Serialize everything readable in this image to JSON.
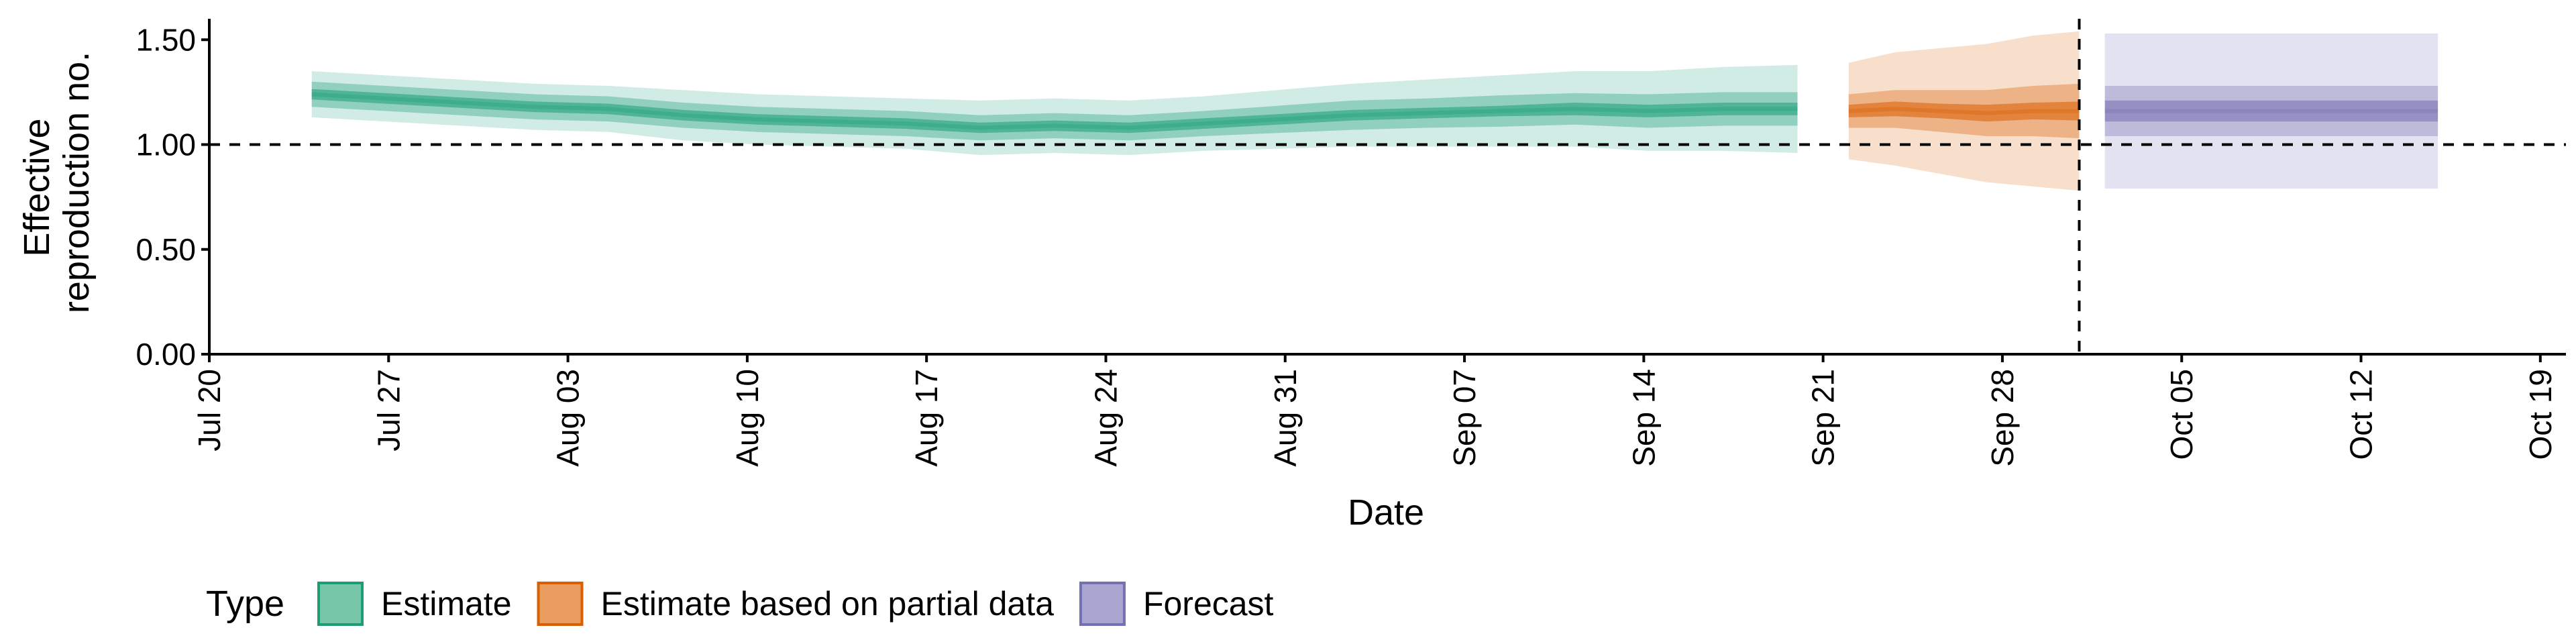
{
  "chart_data": {
    "type": "area",
    "xlabel": "Date",
    "ylabel_lines": [
      "Effective",
      "reproduction no."
    ],
    "x_ticks": [
      "2020-07-20",
      "2020-07-27",
      "2020-08-03",
      "2020-08-10",
      "2020-08-17",
      "2020-08-24",
      "2020-08-31",
      "2020-09-07",
      "2020-09-14",
      "2020-09-21",
      "2020-09-28",
      "2020-10-05",
      "2020-10-12",
      "2020-10-19"
    ],
    "x_tick_labels": [
      "Jul 20",
      "Jul 27",
      "Aug 03",
      "Aug 10",
      "Aug 17",
      "Aug 24",
      "Aug 31",
      "Sep 07",
      "Sep 14",
      "Sep 21",
      "Sep 28",
      "Oct 05",
      "Oct 12",
      "Oct 19"
    ],
    "xlim": [
      "2020-07-20",
      "2020-10-20"
    ],
    "y_ticks": [
      0,
      0.5,
      1.0,
      1.5
    ],
    "y_tick_labels": [
      "0.00",
      "0.50",
      "1.00",
      "1.50"
    ],
    "ylim": [
      0,
      1.6
    ],
    "reference_line_y": 1.0,
    "reference_line_x": "2020-10-01",
    "grid": false,
    "legend": {
      "title": "Type",
      "position": "bottom",
      "entries": [
        {
          "label": "Estimate",
          "fill": "#78c6a9",
          "stroke": "#1b9e77"
        },
        {
          "label": "Estimate based on partial data",
          "fill": "#e99d60",
          "stroke": "#d95f02"
        },
        {
          "label": "Forecast",
          "fill": "#a9a6d2",
          "stroke": "#7570b3"
        }
      ]
    },
    "series": [
      {
        "name": "Estimate",
        "color": "#1b9e77",
        "band_opacities": [
          0.2,
          0.35,
          0.55
        ],
        "x_start": "2020-07-24",
        "x_end": "2020-09-20",
        "median": [
          1.24,
          1.22,
          1.2,
          1.18,
          1.17,
          1.14,
          1.12,
          1.11,
          1.1,
          1.08,
          1.09,
          1.08,
          1.1,
          1.12,
          1.14,
          1.15,
          1.16,
          1.17,
          1.16,
          1.17,
          1.17
        ],
        "inner_halfwidth": [
          0.025,
          0.025,
          0.025,
          0.025,
          0.025,
          0.025,
          0.025,
          0.025,
          0.025,
          0.025,
          0.025,
          0.025,
          0.025,
          0.025,
          0.025,
          0.025,
          0.025,
          0.03,
          0.03,
          0.03,
          0.03
        ],
        "mid_halfwidth": [
          0.06,
          0.06,
          0.06,
          0.06,
          0.06,
          0.06,
          0.06,
          0.06,
          0.06,
          0.06,
          0.06,
          0.06,
          0.06,
          0.065,
          0.07,
          0.07,
          0.075,
          0.075,
          0.08,
          0.08,
          0.08
        ],
        "outer_halfwidth": [
          0.11,
          0.11,
          0.11,
          0.11,
          0.11,
          0.12,
          0.12,
          0.12,
          0.12,
          0.13,
          0.13,
          0.13,
          0.13,
          0.14,
          0.15,
          0.16,
          0.17,
          0.18,
          0.19,
          0.2,
          0.21
        ]
      },
      {
        "name": "Estimate based on partial data",
        "color": "#d95f02",
        "band_opacities": [
          0.2,
          0.35,
          0.55
        ],
        "x_start": "2020-09-22",
        "x_end": "2020-10-01",
        "median": [
          1.16,
          1.17,
          1.16,
          1.15,
          1.16,
          1.16
        ],
        "inner_halfwidth": [
          0.03,
          0.035,
          0.035,
          0.04,
          0.04,
          0.045
        ],
        "mid_halfwidth": [
          0.08,
          0.09,
          0.1,
          0.11,
          0.12,
          0.13
        ],
        "outer_halfwidth": [
          0.23,
          0.27,
          0.3,
          0.33,
          0.36,
          0.38
        ]
      },
      {
        "name": "Forecast",
        "color": "#7570b3",
        "band_opacities": [
          0.2,
          0.35,
          0.55
        ],
        "x_start": "2020-10-02",
        "x_end": "2020-10-15",
        "median": [
          1.16,
          1.16
        ],
        "inner_halfwidth": [
          0.05,
          0.05
        ],
        "mid_halfwidth": [
          0.12,
          0.12
        ],
        "outer_halfwidth": [
          0.37,
          0.37
        ]
      }
    ]
  }
}
